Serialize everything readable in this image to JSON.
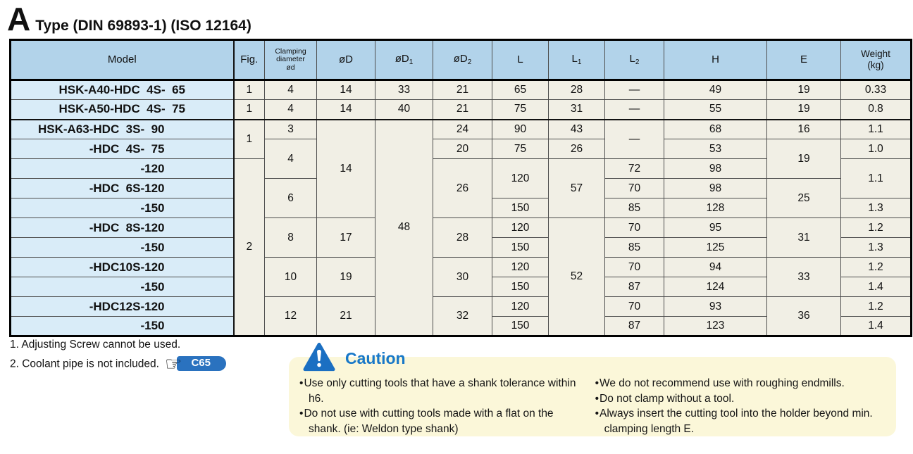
{
  "title": {
    "letter": "A",
    "text": "Type (DIN 69893-1) (ISO 12164)"
  },
  "table": {
    "columns": [
      {
        "label": "Model"
      },
      {
        "label": "Fig."
      },
      {
        "label": "Clamping\ndiameter\nød",
        "small": true
      },
      {
        "label": "øD"
      },
      {
        "label": "øD",
        "sub": "1"
      },
      {
        "label": "øD",
        "sub": "2"
      },
      {
        "label": "L"
      },
      {
        "label": "L",
        "sub": "1"
      },
      {
        "label": "L",
        "sub": "2"
      },
      {
        "label": "H"
      },
      {
        "label": "E"
      },
      {
        "label": "Weight\n(kg)",
        "mid": true
      }
    ],
    "rows": [
      {
        "model": "HSK-A40-HDC  4S-  65",
        "cells": [
          {
            "v": "1"
          },
          {
            "v": "4"
          },
          {
            "v": "14"
          },
          {
            "v": "33"
          },
          {
            "v": "21"
          },
          {
            "v": "65"
          },
          {
            "v": "28"
          },
          {
            "v": "—"
          },
          {
            "v": "49"
          },
          {
            "v": "19"
          },
          {
            "v": "0.33"
          }
        ]
      },
      {
        "model": "HSK-A50-HDC  4S-  75",
        "cells": [
          {
            "v": "1"
          },
          {
            "v": "4"
          },
          {
            "v": "14"
          },
          {
            "v": "40"
          },
          {
            "v": "21"
          },
          {
            "v": "75"
          },
          {
            "v": "31"
          },
          {
            "v": "—"
          },
          {
            "v": "55"
          },
          {
            "v": "19"
          },
          {
            "v": "0.8"
          }
        ]
      },
      {
        "model": "HSK-A63-HDC  3S-  90",
        "cells": [
          {
            "v": "1",
            "rs": 2
          },
          {
            "v": "3"
          },
          {
            "v": "14",
            "rs": 5
          },
          {
            "v": "48",
            "rs": 11
          },
          {
            "v": "24"
          },
          {
            "v": "90"
          },
          {
            "v": "43"
          },
          {
            "v": "—",
            "rs": 2
          },
          {
            "v": "68"
          },
          {
            "v": "16"
          },
          {
            "v": "1.1"
          }
        ]
      },
      {
        "model": "-HDC  4S-  75",
        "cells": [
          {
            "v": "4",
            "rs": 2
          },
          {
            "v": "20"
          },
          {
            "v": "75"
          },
          {
            "v": "26"
          },
          {
            "v": "53"
          },
          {
            "v": "19",
            "rs": 2
          },
          {
            "v": "1.0"
          }
        ]
      },
      {
        "model": "-120",
        "cells": [
          {
            "v": "2",
            "rs": 9
          },
          {
            "v": "26",
            "rs": 3
          },
          {
            "v": "120",
            "rs": 2
          },
          {
            "v": "57",
            "rs": 3
          },
          {
            "v": "72"
          },
          {
            "v": "98"
          },
          {
            "v": "1.1",
            "rs": 2
          }
        ]
      },
      {
        "model": "-HDC  6S-120",
        "cells": [
          {
            "v": "6",
            "rs": 2
          },
          {
            "v": "70"
          },
          {
            "v": "98"
          },
          {
            "v": "25",
            "rs": 2
          }
        ]
      },
      {
        "model": "-150",
        "cells": [
          {
            "v": "150"
          },
          {
            "v": "85"
          },
          {
            "v": "128"
          },
          {
            "v": "1.3"
          }
        ]
      },
      {
        "model": "-HDC  8S-120",
        "cells": [
          {
            "v": "8",
            "rs": 2
          },
          {
            "v": "17",
            "rs": 2
          },
          {
            "v": "28",
            "rs": 2
          },
          {
            "v": "120"
          },
          {
            "v": "52",
            "rs": 6
          },
          {
            "v": "70"
          },
          {
            "v": "95"
          },
          {
            "v": "31",
            "rs": 2
          },
          {
            "v": "1.2"
          }
        ]
      },
      {
        "model": "-150",
        "cells": [
          {
            "v": "150"
          },
          {
            "v": "85"
          },
          {
            "v": "125"
          },
          {
            "v": "1.3"
          }
        ]
      },
      {
        "model": "-HDC10S-120",
        "cells": [
          {
            "v": "10",
            "rs": 2
          },
          {
            "v": "19",
            "rs": 2
          },
          {
            "v": "30",
            "rs": 2
          },
          {
            "v": "120"
          },
          {
            "v": "70"
          },
          {
            "v": "94"
          },
          {
            "v": "33",
            "rs": 2
          },
          {
            "v": "1.2"
          }
        ]
      },
      {
        "model": "-150",
        "cells": [
          {
            "v": "150"
          },
          {
            "v": "87"
          },
          {
            "v": "124"
          },
          {
            "v": "1.4"
          }
        ]
      },
      {
        "model": "-HDC12S-120",
        "cells": [
          {
            "v": "12",
            "rs": 2
          },
          {
            "v": "21",
            "rs": 2
          },
          {
            "v": "32",
            "rs": 2
          },
          {
            "v": "120"
          },
          {
            "v": "70"
          },
          {
            "v": "93"
          },
          {
            "v": "36",
            "rs": 2
          },
          {
            "v": "1.2"
          }
        ]
      },
      {
        "model": "-150",
        "cells": [
          {
            "v": "150"
          },
          {
            "v": "87"
          },
          {
            "v": "123"
          },
          {
            "v": "1.4"
          }
        ]
      }
    ]
  },
  "footnotes": [
    "1. Adjusting Screw cannot be used.",
    "2. Coolant pipe is not included."
  ],
  "reference": {
    "icon": "pointing-hand-icon",
    "label": "C65"
  },
  "caution": {
    "icon": "warning-triangle-icon",
    "heading": "Caution",
    "left_bullets": [
      "Use only cutting tools that have a shank tolerance within h6.",
      "Do not use with cutting tools made with a flat on the shank. (ie: Weldon type shank)"
    ],
    "right_bullets": [
      "We do not recommend use with roughing endmills.",
      "Do not clamp without a tool.",
      "Always insert the cutting tool into the holder beyond min. clamping length E."
    ]
  },
  "colors": {
    "header_bg": "#b2d3ea",
    "model_cell_bg": "#d9ecf8",
    "data_cell_bg": "#f1efe5",
    "caution_bg": "#fbf7d9",
    "accent_blue": "#1878c8",
    "badge_blue": "#2a72bf"
  }
}
